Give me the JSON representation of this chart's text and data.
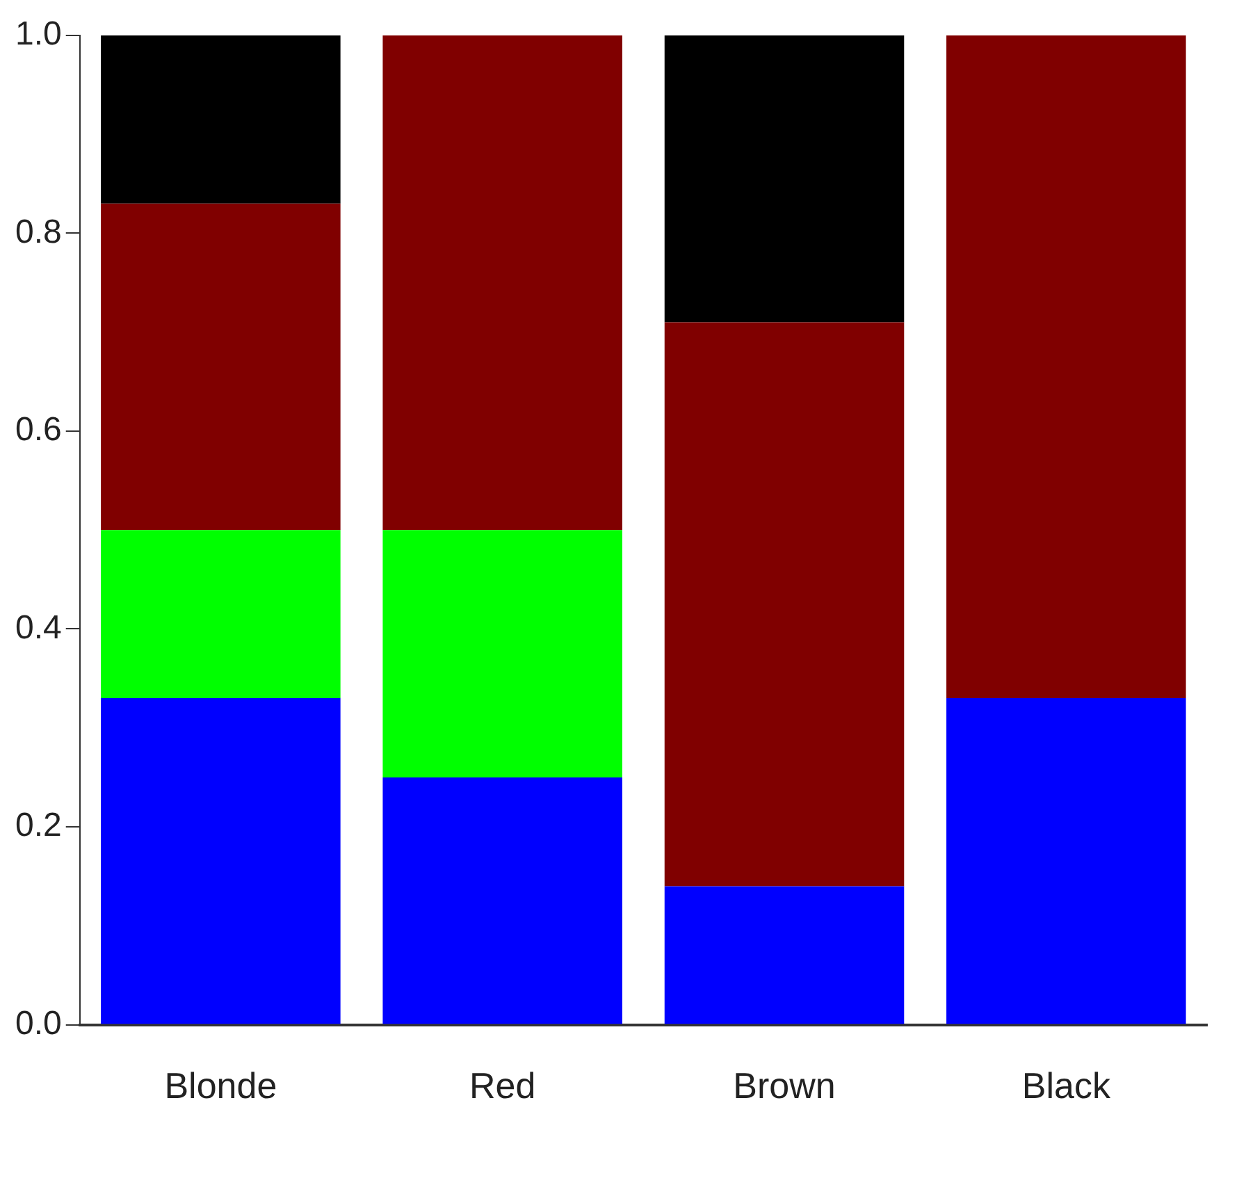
{
  "chart_data": {
    "type": "bar",
    "stacked": true,
    "categories": [
      "Blonde",
      "Red",
      "Brown",
      "Black"
    ],
    "series": [
      {
        "color": "#0000ff",
        "values": [
          0.33,
          0.25,
          0.14,
          0.33
        ]
      },
      {
        "color": "#00ff00",
        "values": [
          0.17,
          0.25,
          0,
          0
        ]
      },
      {
        "color": "#800000",
        "values": [
          0.33,
          0.5,
          0.57,
          0.67
        ]
      },
      {
        "color": "#000000",
        "values": [
          0.17,
          0,
          0.29,
          0
        ]
      }
    ],
    "ylim": [
      0,
      1
    ],
    "yticks": [
      {
        "value": 0,
        "label": "0.0"
      },
      0.2,
      0.4,
      0.6,
      0.8,
      {
        "value": 1,
        "label": "1.0"
      }
    ],
    "grid": false,
    "legend": false
  }
}
